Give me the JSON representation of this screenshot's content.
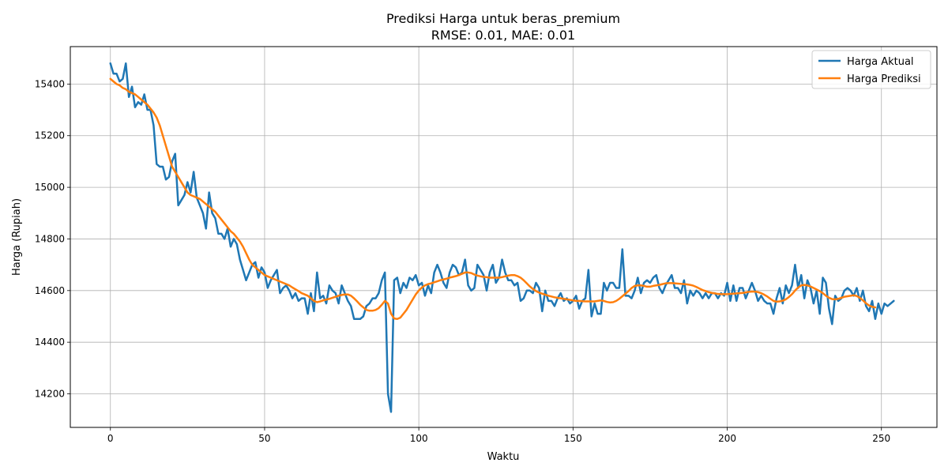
{
  "chart_data": {
    "type": "line",
    "title": "Prediksi Harga untuk beras_premium",
    "subtitle": "RMSE: 0.01, MAE: 0.01",
    "xlabel": "Waktu",
    "ylabel": "Harga (Rupiah)",
    "xlim": [
      -13,
      268
    ],
    "ylim": [
      14070,
      15545
    ],
    "x_ticks": [
      0,
      50,
      100,
      150,
      200,
      250
    ],
    "y_ticks": [
      14200,
      14400,
      14600,
      14800,
      15000,
      15200,
      15400
    ],
    "x_tick_labels": [
      "0",
      "50",
      "100",
      "150",
      "200",
      "250"
    ],
    "y_tick_labels": [
      "14200",
      "14400",
      "14600",
      "14800",
      "15000",
      "15200",
      "15400"
    ],
    "grid": true,
    "legend_position": "top-right",
    "series": [
      {
        "name": "Harga Aktual",
        "color": "#1f77b4",
        "x_start": 0,
        "x_step": 1,
        "values": [
          15480,
          15440,
          15440,
          15410,
          15420,
          15480,
          15350,
          15390,
          15310,
          15330,
          15320,
          15360,
          15300,
          15300,
          15240,
          15090,
          15080,
          15080,
          15030,
          15040,
          15100,
          15130,
          14930,
          14950,
          14970,
          15020,
          14980,
          15060,
          14960,
          14930,
          14900,
          14840,
          14980,
          14900,
          14880,
          14820,
          14820,
          14800,
          14840,
          14770,
          14800,
          14780,
          14720,
          14680,
          14640,
          14670,
          14700,
          14710,
          14650,
          14690,
          14670,
          14610,
          14640,
          14660,
          14680,
          14590,
          14610,
          14620,
          14600,
          14570,
          14590,
          14560,
          14570,
          14570,
          14510,
          14590,
          14520,
          14670,
          14570,
          14580,
          14550,
          14620,
          14600,
          14590,
          14550,
          14620,
          14590,
          14560,
          14540,
          14490,
          14490,
          14490,
          14500,
          14540,
          14550,
          14570,
          14570,
          14590,
          14640,
          14670,
          14200,
          14130,
          14640,
          14650,
          14590,
          14630,
          14610,
          14650,
          14640,
          14660,
          14620,
          14630,
          14580,
          14620,
          14590,
          14670,
          14700,
          14670,
          14630,
          14610,
          14670,
          14700,
          14690,
          14660,
          14670,
          14720,
          14620,
          14600,
          14610,
          14700,
          14680,
          14660,
          14600,
          14670,
          14700,
          14630,
          14650,
          14720,
          14670,
          14640,
          14640,
          14620,
          14630,
          14560,
          14570,
          14600,
          14600,
          14590,
          14630,
          14610,
          14520,
          14600,
          14560,
          14560,
          14540,
          14570,
          14590,
          14560,
          14570,
          14550,
          14560,
          14580,
          14530,
          14560,
          14570,
          14680,
          14500,
          14550,
          14510,
          14510,
          14630,
          14600,
          14630,
          14630,
          14610,
          14610,
          14760,
          14580,
          14580,
          14570,
          14600,
          14650,
          14590,
          14630,
          14640,
          14630,
          14650,
          14660,
          14610,
          14590,
          14620,
          14640,
          14660,
          14610,
          14610,
          14590,
          14640,
          14550,
          14600,
          14580,
          14600,
          14590,
          14570,
          14590,
          14570,
          14590,
          14590,
          14570,
          14590,
          14580,
          14630,
          14560,
          14620,
          14560,
          14610,
          14610,
          14570,
          14600,
          14630,
          14600,
          14560,
          14580,
          14560,
          14550,
          14550,
          14510,
          14570,
          14610,
          14550,
          14620,
          14590,
          14620,
          14700,
          14610,
          14660,
          14570,
          14640,
          14610,
          14550,
          14600,
          14510,
          14650,
          14630,
          14530,
          14470,
          14580,
          14560,
          14570,
          14600,
          14610,
          14600,
          14580,
          14610,
          14560,
          14600,
          14540,
          14520,
          14560,
          14490,
          14550,
          14510,
          14550,
          14540,
          14550,
          14560
        ]
      },
      {
        "name": "Harga Prediksi",
        "color": "#ff7f0e",
        "x_start": 0,
        "x_step": 1,
        "values": [
          15420,
          15410,
          15400,
          15395,
          15385,
          15380,
          15370,
          15365,
          15360,
          15350,
          15340,
          15330,
          15320,
          15305,
          15290,
          15270,
          15240,
          15200,
          15160,
          15120,
          15080,
          15060,
          15040,
          15020,
          15000,
          14980,
          14970,
          14965,
          14960,
          14955,
          14945,
          14935,
          14925,
          14915,
          14905,
          14890,
          14875,
          14860,
          14845,
          14830,
          14820,
          14805,
          14790,
          14770,
          14745,
          14720,
          14700,
          14690,
          14680,
          14670,
          14660,
          14655,
          14650,
          14645,
          14640,
          14635,
          14630,
          14625,
          14620,
          14612,
          14605,
          14598,
          14590,
          14585,
          14580,
          14570,
          14560,
          14555,
          14558,
          14562,
          14565,
          14568,
          14572,
          14576,
          14580,
          14583,
          14585,
          14585,
          14580,
          14570,
          14558,
          14545,
          14535,
          14525,
          14522,
          14522,
          14525,
          14532,
          14545,
          14560,
          14550,
          14510,
          14492,
          14490,
          14495,
          14510,
          14525,
          14545,
          14565,
          14585,
          14600,
          14612,
          14620,
          14625,
          14628,
          14632,
          14636,
          14640,
          14643,
          14646,
          14650,
          14653,
          14656,
          14660,
          14665,
          14670,
          14670,
          14668,
          14662,
          14658,
          14655,
          14653,
          14652,
          14650,
          14650,
          14650,
          14650,
          14652,
          14655,
          14658,
          14660,
          14660,
          14656,
          14650,
          14640,
          14628,
          14616,
          14606,
          14598,
          14592,
          14588,
          14584,
          14580,
          14577,
          14574,
          14572,
          14570,
          14568,
          14566,
          14564,
          14562,
          14560,
          14560,
          14559,
          14558,
          14558,
          14558,
          14558,
          14560,
          14562,
          14560,
          14556,
          14554,
          14555,
          14560,
          14568,
          14578,
          14588,
          14598,
          14610,
          14618,
          14620,
          14620,
          14618,
          14615,
          14615,
          14618,
          14620,
          14622,
          14625,
          14628,
          14629,
          14629,
          14628,
          14627,
          14626,
          14625,
          14624,
          14622,
          14619,
          14614,
          14608,
          14602,
          14598,
          14594,
          14591,
          14589,
          14587,
          14586,
          14586,
          14586,
          14587,
          14588,
          14589,
          14590,
          14591,
          14593,
          14595,
          14596,
          14596,
          14594,
          14590,
          14584,
          14577,
          14568,
          14560,
          14557,
          14558,
          14561,
          14566,
          14575,
          14586,
          14600,
          14612,
          14620,
          14622,
          14620,
          14616,
          14610,
          14604,
          14598,
          14590,
          14580,
          14572,
          14567,
          14566,
          14568,
          14572,
          14576,
          14578,
          14580,
          14582,
          14579,
          14572,
          14562,
          14551,
          14542,
          14537,
          14535
        ]
      }
    ]
  }
}
